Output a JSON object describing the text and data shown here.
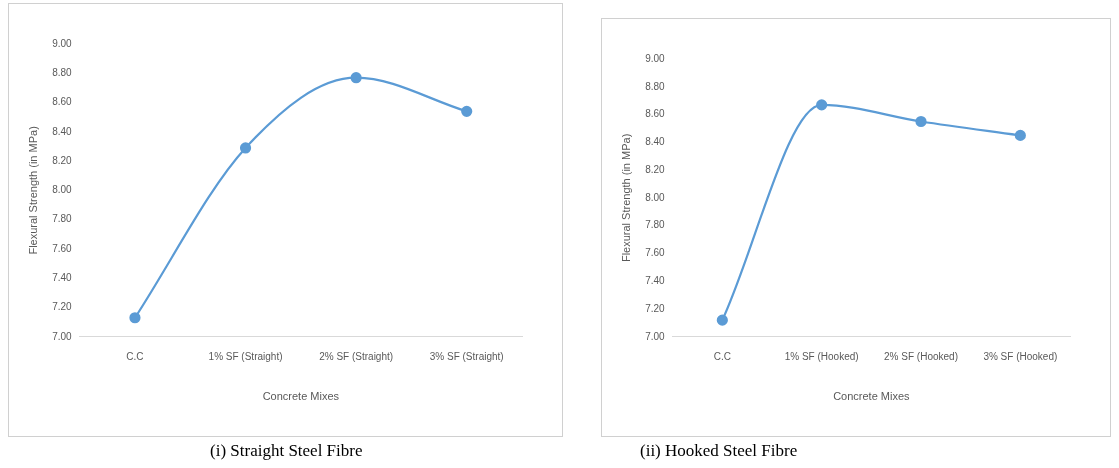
{
  "chart_data": [
    {
      "type": "line",
      "xlabel": "Concrete Mixes",
      "ylabel": "Flexural Strength (in MPa)",
      "categories": [
        "C.C",
        "1% SF (Straight)",
        "2% SF (Straight)",
        "3% SF (Straight)"
      ],
      "series": [
        {
          "color": "#5b9bd5",
          "values": [
            7.13,
            8.29,
            8.77,
            8.54
          ]
        }
      ],
      "ylim": [
        7,
        9
      ],
      "yticks": [
        {
          "value": 7,
          "label": "7.00"
        },
        {
          "value": 7.2,
          "label": "7.20"
        },
        {
          "value": 7.4,
          "label": "7.40"
        },
        {
          "value": 7.6,
          "label": "7.60"
        },
        {
          "value": 7.8,
          "label": "7.80"
        },
        {
          "value": 8,
          "label": "8.00"
        },
        {
          "value": 8.2,
          "label": "8.20"
        },
        {
          "value": 8.4,
          "label": "8.40"
        },
        {
          "value": 8.6,
          "label": "8.60"
        },
        {
          "value": 8.8,
          "label": "8.80"
        },
        {
          "value": 9,
          "label": "9.00"
        }
      ],
      "marker": "circle",
      "legend": false,
      "grid": false,
      "annotations": [
        "(i) Straight Steel Fibre"
      ]
    },
    {
      "type": "line",
      "xlabel": "Concrete Mixes",
      "ylabel": "Flexural Strength (in MPa)",
      "categories": [
        "C.C",
        "1% SF (Hooked)",
        "2% SF (Hooked)",
        "3% SF (Hooked)"
      ],
      "series": [
        {
          "color": "#5b9bd5",
          "values": [
            7.12,
            8.67,
            8.55,
            8.45
          ]
        }
      ],
      "ylim": [
        7,
        9
      ],
      "yticks": [
        {
          "value": 7,
          "label": "7.00"
        },
        {
          "value": 7.2,
          "label": "7.20"
        },
        {
          "value": 7.4,
          "label": "7.40"
        },
        {
          "value": 7.6,
          "label": "7.60"
        },
        {
          "value": 7.8,
          "label": "7.80"
        },
        {
          "value": 8,
          "label": "8.00"
        },
        {
          "value": 8.2,
          "label": "8.20"
        },
        {
          "value": 8.4,
          "label": "8.40"
        },
        {
          "value": 8.6,
          "label": "8.60"
        },
        {
          "value": 8.8,
          "label": "8.80"
        },
        {
          "value": 9,
          "label": "9.00"
        }
      ],
      "marker": "circle",
      "legend": false,
      "grid": false,
      "annotations": [
        "(ii) Hooked Steel Fibre"
      ]
    }
  ]
}
